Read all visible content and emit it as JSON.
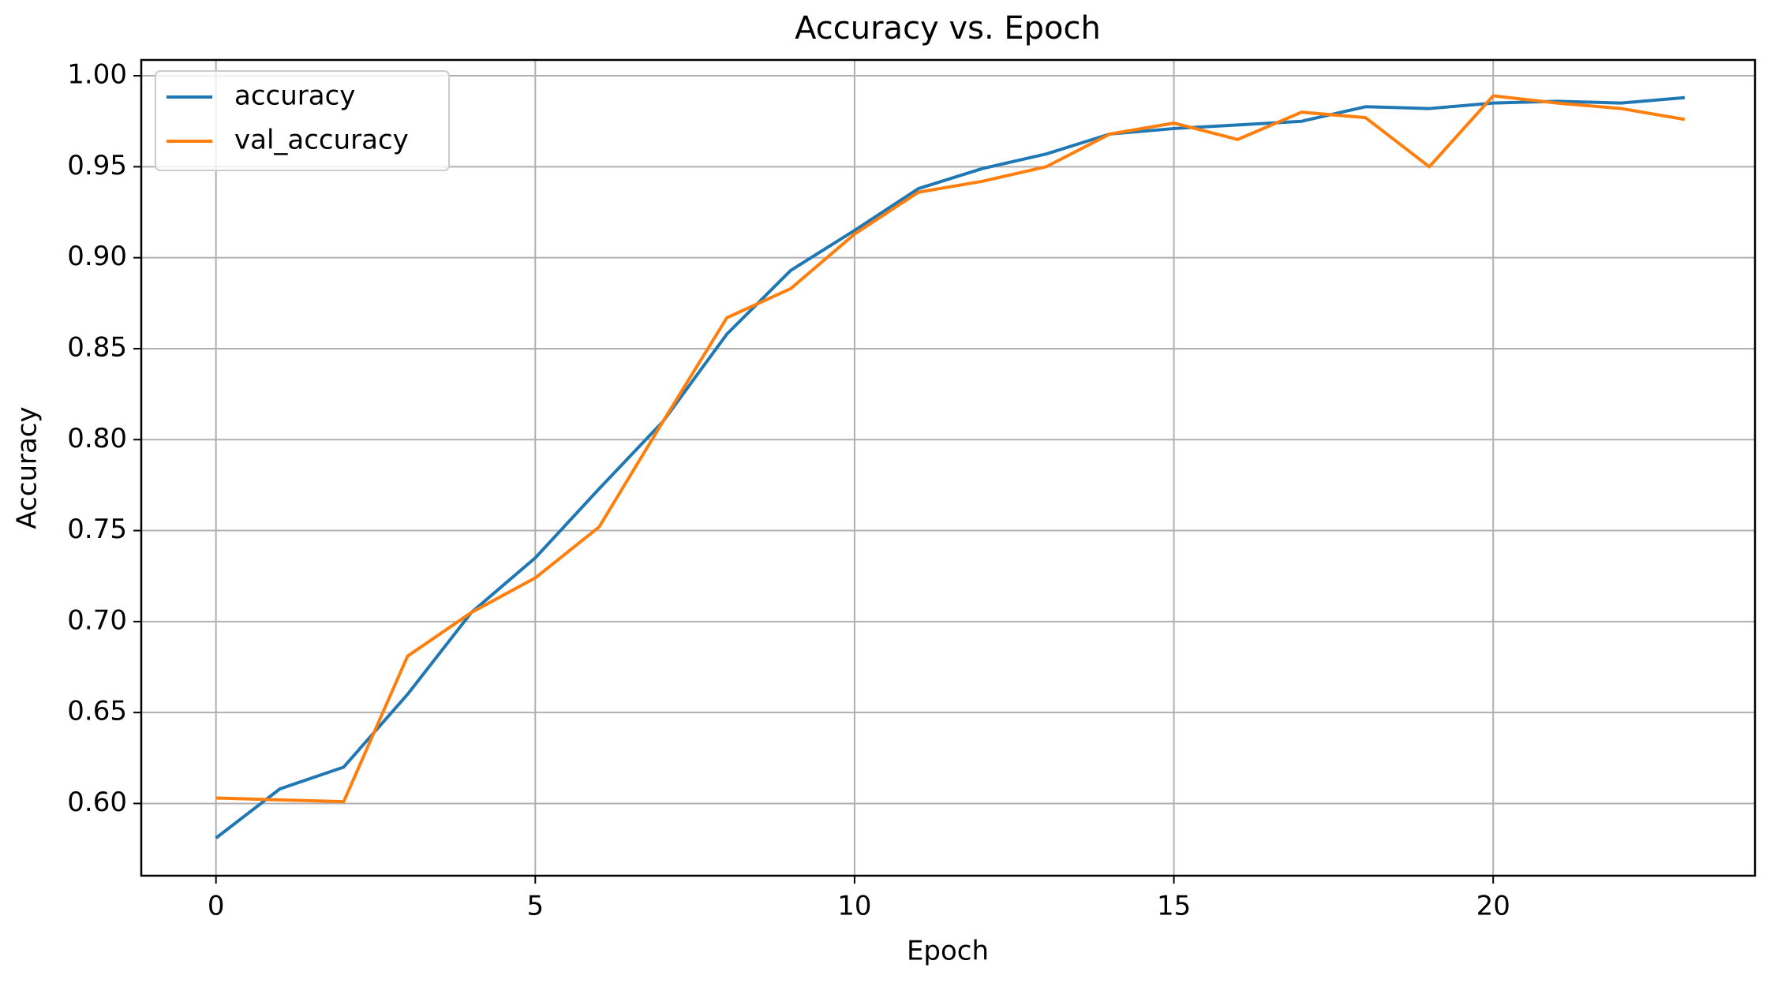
{
  "chart_data": {
    "type": "line",
    "title": "Accuracy vs. Epoch",
    "x_label": "Epoch",
    "y_label": "Accuracy",
    "x": [
      0,
      1,
      2,
      3,
      4,
      5,
      6,
      7,
      8,
      9,
      10,
      11,
      12,
      13,
      14,
      15,
      16,
      17,
      18,
      19,
      20,
      21,
      22,
      23
    ],
    "series": [
      {
        "name": "accuracy",
        "color": "#1f77b4",
        "values": [
          0.581,
          0.608,
          0.62,
          0.66,
          0.705,
          0.735,
          0.773,
          0.81,
          0.858,
          0.893,
          0.915,
          0.938,
          0.949,
          0.957,
          0.968,
          0.971,
          0.973,
          0.975,
          0.983,
          0.982,
          0.985,
          0.986,
          0.985,
          0.988
        ]
      },
      {
        "name": "val_accuracy",
        "color": "#ff7f0e",
        "values": [
          0.603,
          0.602,
          0.601,
          0.681,
          0.705,
          0.724,
          0.752,
          0.81,
          0.867,
          0.883,
          0.913,
          0.936,
          0.942,
          0.95,
          0.968,
          0.974,
          0.965,
          0.98,
          0.977,
          0.95,
          0.989,
          0.985,
          0.982,
          0.976
        ]
      }
    ],
    "xlim": [
      -1.17,
      24.1
    ],
    "ylim": [
      0.5603,
      1.0087
    ],
    "xticks": [
      0,
      5,
      10,
      15,
      20
    ],
    "yticks": [
      {
        "value": 0.6,
        "label": "0.60"
      },
      {
        "value": 0.65,
        "label": "0.65"
      },
      {
        "value": 0.7,
        "label": "0.70"
      },
      {
        "value": 0.75,
        "label": "0.75"
      },
      {
        "value": 0.8,
        "label": "0.80"
      },
      {
        "value": 0.85,
        "label": "0.85"
      },
      {
        "value": 0.9,
        "label": "0.90"
      },
      {
        "value": 0.95,
        "label": "0.95"
      },
      {
        "value": 1.0,
        "label": "1.00"
      }
    ],
    "grid": true,
    "legend": "upper left"
  }
}
